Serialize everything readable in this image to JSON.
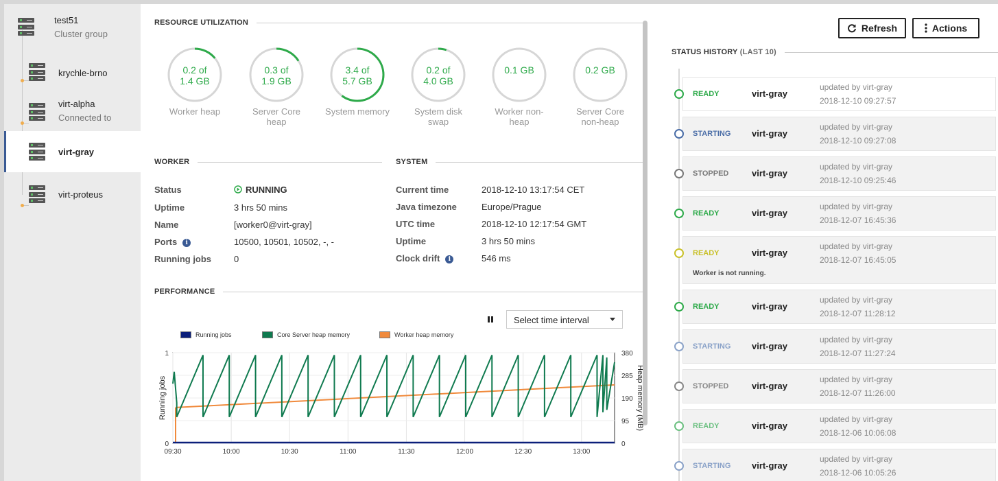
{
  "sidebar": {
    "group": {
      "name": "test51",
      "sub": "Cluster group"
    },
    "nodes": [
      {
        "name": "krychle-brno",
        "sub": ""
      },
      {
        "name": "virt-alpha",
        "sub": "Connected to"
      },
      {
        "name": "virt-gray",
        "sub": ""
      },
      {
        "name": "virt-proteus",
        "sub": ""
      }
    ]
  },
  "resource": {
    "title": "RESOURCE UTILIZATION",
    "gauges": [
      {
        "line1": "0.2 of",
        "line2": "1.4 GB",
        "label1": "Worker heap",
        "label2": "",
        "fraction": 0.14
      },
      {
        "line1": "0.3 of",
        "line2": "1.9 GB",
        "label1": "Server Core",
        "label2": "heap",
        "fraction": 0.16
      },
      {
        "line1": "3.4 of",
        "line2": "5.7 GB",
        "label1": "System memory",
        "label2": "",
        "fraction": 0.6
      },
      {
        "line1": "0.2 of",
        "line2": "4.0 GB",
        "label1": "System disk",
        "label2": "swap",
        "fraction": 0.05
      },
      {
        "line1": "0.1 GB",
        "line2": "",
        "label1": "Worker non-",
        "label2": "heap",
        "fraction": 0
      },
      {
        "line1": "0.2 GB",
        "line2": "",
        "label1": "Server Core",
        "label2": "non-heap",
        "fraction": 0
      }
    ]
  },
  "worker": {
    "title": "WORKER",
    "status_label": "Status",
    "status_value": "RUNNING",
    "uptime_label": "Uptime",
    "uptime_value": "3 hrs 50 mins",
    "name_label": "Name",
    "name_value": "[worker0@virt-gray]",
    "ports_label": "Ports",
    "ports_value": "10500, 10501, 10502, -, -",
    "jobs_label": "Running jobs",
    "jobs_value": "0"
  },
  "system": {
    "title": "SYSTEM",
    "time_label": "Current time",
    "time_value": "2018-12-10 13:17:54 CET",
    "tz_label": "Java timezone",
    "tz_value": "Europe/Prague",
    "utc_label": "UTC time",
    "utc_value": "2018-12-10 12:17:54 GMT",
    "uptime_label": "Uptime",
    "uptime_value": "3 hrs 50 mins",
    "drift_label": "Clock drift",
    "drift_value": "546 ms"
  },
  "performance": {
    "title": "PERFORMANCE",
    "select_label": "Select time interval"
  },
  "chart_data": {
    "type": "line",
    "legend": [
      "Running jobs",
      "Core Server heap memory",
      "Worker heap memory"
    ],
    "x_ticks": [
      "09:30",
      "10:00",
      "10:30",
      "11:00",
      "11:30",
      "12:00",
      "12:30",
      "13:00"
    ],
    "ylabel_left": "Running jobs",
    "ylabel_right": "Heap memory (MB)",
    "y_left_ticks": [
      "0",
      "1"
    ],
    "y_right_ticks": [
      "0",
      "95",
      "190",
      "285",
      "380"
    ],
    "y_right_lim": [
      0,
      380
    ],
    "x_lim": [
      "09:30",
      "13:17"
    ],
    "series": [
      {
        "name": "Running jobs",
        "color": "#0b1f7a",
        "values": [
          0,
          0
        ]
      },
      {
        "name": "Core Server heap memory",
        "color": "#0f7a4f",
        "sawtooth_min": 110,
        "sawtooth_max": 370,
        "period_min": 13.5
      },
      {
        "name": "Worker heap memory",
        "color": "#f08a3c",
        "start": 150,
        "end": 245
      }
    ]
  },
  "toolbar": {
    "refresh": "Refresh",
    "actions": "Actions"
  },
  "history": {
    "title": "STATUS HISTORY",
    "subtitle": "(LAST 10)",
    "items": [
      {
        "status": "READY",
        "who": "virt-gray",
        "by": "updated by virt-gray",
        "time": "2018-12-10 09:27:57",
        "color": "#2eaa4a",
        "note": ""
      },
      {
        "status": "STARTING",
        "who": "virt-gray",
        "by": "updated by virt-gray",
        "time": "2018-12-10 09:27:08",
        "color": "#4a6da7",
        "note": ""
      },
      {
        "status": "STOPPED",
        "who": "virt-gray",
        "by": "updated by virt-gray",
        "time": "2018-12-10 09:25:46",
        "color": "#777777",
        "note": ""
      },
      {
        "status": "READY",
        "who": "virt-gray",
        "by": "updated by virt-gray",
        "time": "2018-12-07 16:45:36",
        "color": "#2eaa4a",
        "note": ""
      },
      {
        "status": "READY",
        "who": "virt-gray",
        "by": "updated by virt-gray",
        "time": "2018-12-07 16:45:05",
        "color": "#c9c12a",
        "note": "Worker is not running."
      },
      {
        "status": "READY",
        "who": "virt-gray",
        "by": "updated by virt-gray",
        "time": "2018-12-07 11:28:12",
        "color": "#2eaa4a",
        "note": ""
      },
      {
        "status": "STARTING",
        "who": "virt-gray",
        "by": "updated by virt-gray",
        "time": "2018-12-07 11:27:24",
        "color": "#8aa2c8",
        "note": ""
      },
      {
        "status": "STOPPED",
        "who": "virt-gray",
        "by": "updated by virt-gray",
        "time": "2018-12-07 11:26:00",
        "color": "#888888",
        "note": ""
      },
      {
        "status": "READY",
        "who": "virt-gray",
        "by": "updated by virt-gray",
        "time": "2018-12-06 10:06:08",
        "color": "#6cc081",
        "note": ""
      },
      {
        "status": "STARTING",
        "who": "virt-gray",
        "by": "updated by virt-gray",
        "time": "2018-12-06 10:05:26",
        "color": "#8aa2c8",
        "note": ""
      }
    ]
  }
}
